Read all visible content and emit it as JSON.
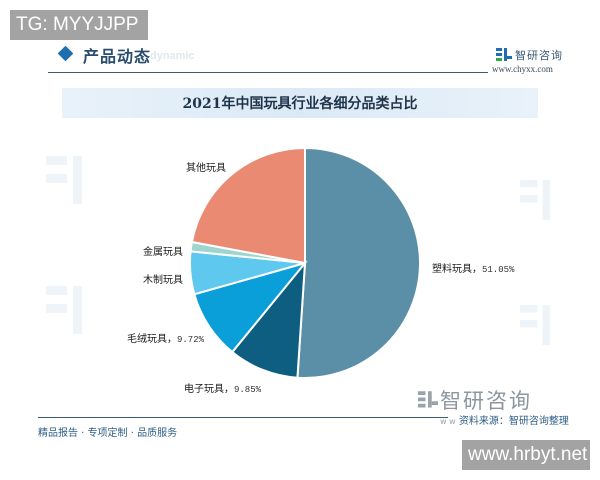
{
  "badges": {
    "top_left": "TG: MYYJJPP",
    "bottom_right": "www.hrbyt.net"
  },
  "header": {
    "section_title": "产品动态",
    "section_subtitle": "dynamic",
    "brand_name": "智研咨询",
    "brand_url": "www.chyxx.com"
  },
  "chart_title": "2021年中国玩具行业各细分品类占比",
  "labels": {
    "plastic": "塑料玩具，",
    "plastic_pct": "51.05%",
    "electronic": "电子玩具，",
    "electronic_pct": "9.85%",
    "plush": "毛绒玩具，",
    "plush_pct": "9.72%",
    "wooden": "木制玩具",
    "metal": "金属玩具",
    "other": "其他玩具"
  },
  "footer": {
    "slogan": "精品报告 · 专项定制 · 品质服务",
    "source_prefix": "资料来源：",
    "source": "智研咨询整理",
    "big_brand": "智研咨询",
    "faint_url": "w w"
  },
  "colors": {
    "plastic": "#5b8fa8",
    "electronic": "#0d5e80",
    "plush": "#0a9fd8",
    "wooden": "#5ec8ef",
    "metal": "#9ed6cf",
    "other": "#ea8a72",
    "accent": "#1f6fae"
  },
  "chart_data": {
    "type": "pie",
    "title": "2021年中国玩具行业各细分品类占比",
    "categories": [
      "塑料玩具",
      "电子玩具",
      "毛绒玩具",
      "木制玩具",
      "金属玩具",
      "其他玩具"
    ],
    "values": [
      51.05,
      9.85,
      9.72,
      6.0,
      1.3,
      22.08
    ],
    "labeled_values": {
      "塑料玩具": 51.05,
      "电子玩具": 9.85,
      "毛绒玩具": 9.72
    },
    "unit": "%",
    "start_angle": "12 o'clock",
    "direction": "clockwise",
    "legend": "none (direct labels)",
    "source": "智研咨询整理"
  }
}
